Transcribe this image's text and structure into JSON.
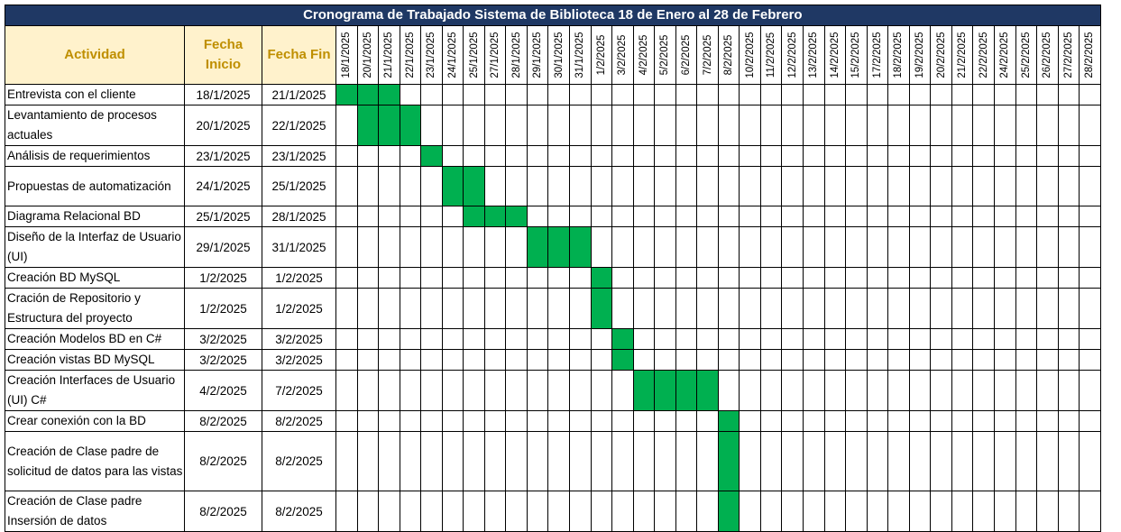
{
  "title": "Cronograma de Trabajado Sistema de Biblioteca 18 de Enero al 28 de Febrero",
  "headers": {
    "activity": "Actividad",
    "start": "Fecha Inicio",
    "end": "Fecha Fin"
  },
  "dates": [
    "18/1/2025",
    "20/1/2025",
    "21/1/2025",
    "22/1/2025",
    "23/1/2025",
    "24/1/2025",
    "25/1/2025",
    "27/1/2025",
    "28/1/2025",
    "29/1/2025",
    "30/1/2025",
    "31/1/2025",
    "1/2/2025",
    "3/2/2025",
    "4/2/2025",
    "5/2/2025",
    "6/2/2025",
    "7/2/2025",
    "8/2/2025",
    "10/2/2025",
    "11/2/2025",
    "12/2/2025",
    "13/2/2025",
    "14/2/2025",
    "15/2/2025",
    "17/2/2025",
    "18/2/2025",
    "19/2/2025",
    "20/2/2025",
    "21/2/2025",
    "22/2/2025",
    "24/2/2025",
    "25/2/2025",
    "26/2/2025",
    "27/2/2025",
    "28/2/2025"
  ],
  "colors": {
    "title_bg": "#1f3864",
    "header_bg": "#fff2cc",
    "header_text": "#bf8f00",
    "bar": "#00b050"
  },
  "tasks": [
    {
      "name": "Entrevista con el cliente",
      "start": "18/1/2025",
      "end": "21/1/2025",
      "from": 0,
      "to": 2
    },
    {
      "name": "Levantamiento de procesos actuales",
      "start": "20/1/2025",
      "end": "22/1/2025",
      "from": 1,
      "to": 3
    },
    {
      "name": "Análisis de requerimientos",
      "start": "23/1/2025",
      "end": "23/1/2025",
      "from": 4,
      "to": 4
    },
    {
      "name": "Propuestas de automatización",
      "start": "24/1/2025",
      "end": "25/1/2025",
      "from": 5,
      "to": 6
    },
    {
      "name": "Diagrama Relacional BD",
      "start": "25/1/2025",
      "end": "28/1/2025",
      "from": 6,
      "to": 8
    },
    {
      "name": "Diseño de la Interfaz de Usuario (UI)",
      "start": "29/1/2025",
      "end": "31/1/2025",
      "from": 9,
      "to": 11
    },
    {
      "name": "Creación BD MySQL",
      "start": "1/2/2025",
      "end": "1/2/2025",
      "from": 12,
      "to": 12
    },
    {
      "name": "Cración de Repositorio y Estructura del proyecto",
      "start": "1/2/2025",
      "end": "1/2/2025",
      "from": 12,
      "to": 12
    },
    {
      "name": "Creación Modelos BD en C#",
      "start": "3/2/2025",
      "end": "3/2/2025",
      "from": 13,
      "to": 13
    },
    {
      "name": "Creación vistas BD MySQL",
      "start": "3/2/2025",
      "end": "3/2/2025",
      "from": 13,
      "to": 13
    },
    {
      "name": "Creación Interfaces de Usuario (UI) C#",
      "start": "4/2/2025",
      "end": "7/2/2025",
      "from": 14,
      "to": 17
    },
    {
      "name": "Crear conexión con la BD",
      "start": "8/2/2025",
      "end": "8/2/2025",
      "from": 18,
      "to": 18
    },
    {
      "name": "Creación de Clase padre de solicitud de datos para las vistas",
      "start": "8/2/2025",
      "end": "8/2/2025",
      "from": 18,
      "to": 18
    },
    {
      "name": "Creación de Clase padre Insersión de datos",
      "start": "8/2/2025",
      "end": "8/2/2025",
      "from": 18,
      "to": 18
    }
  ]
}
